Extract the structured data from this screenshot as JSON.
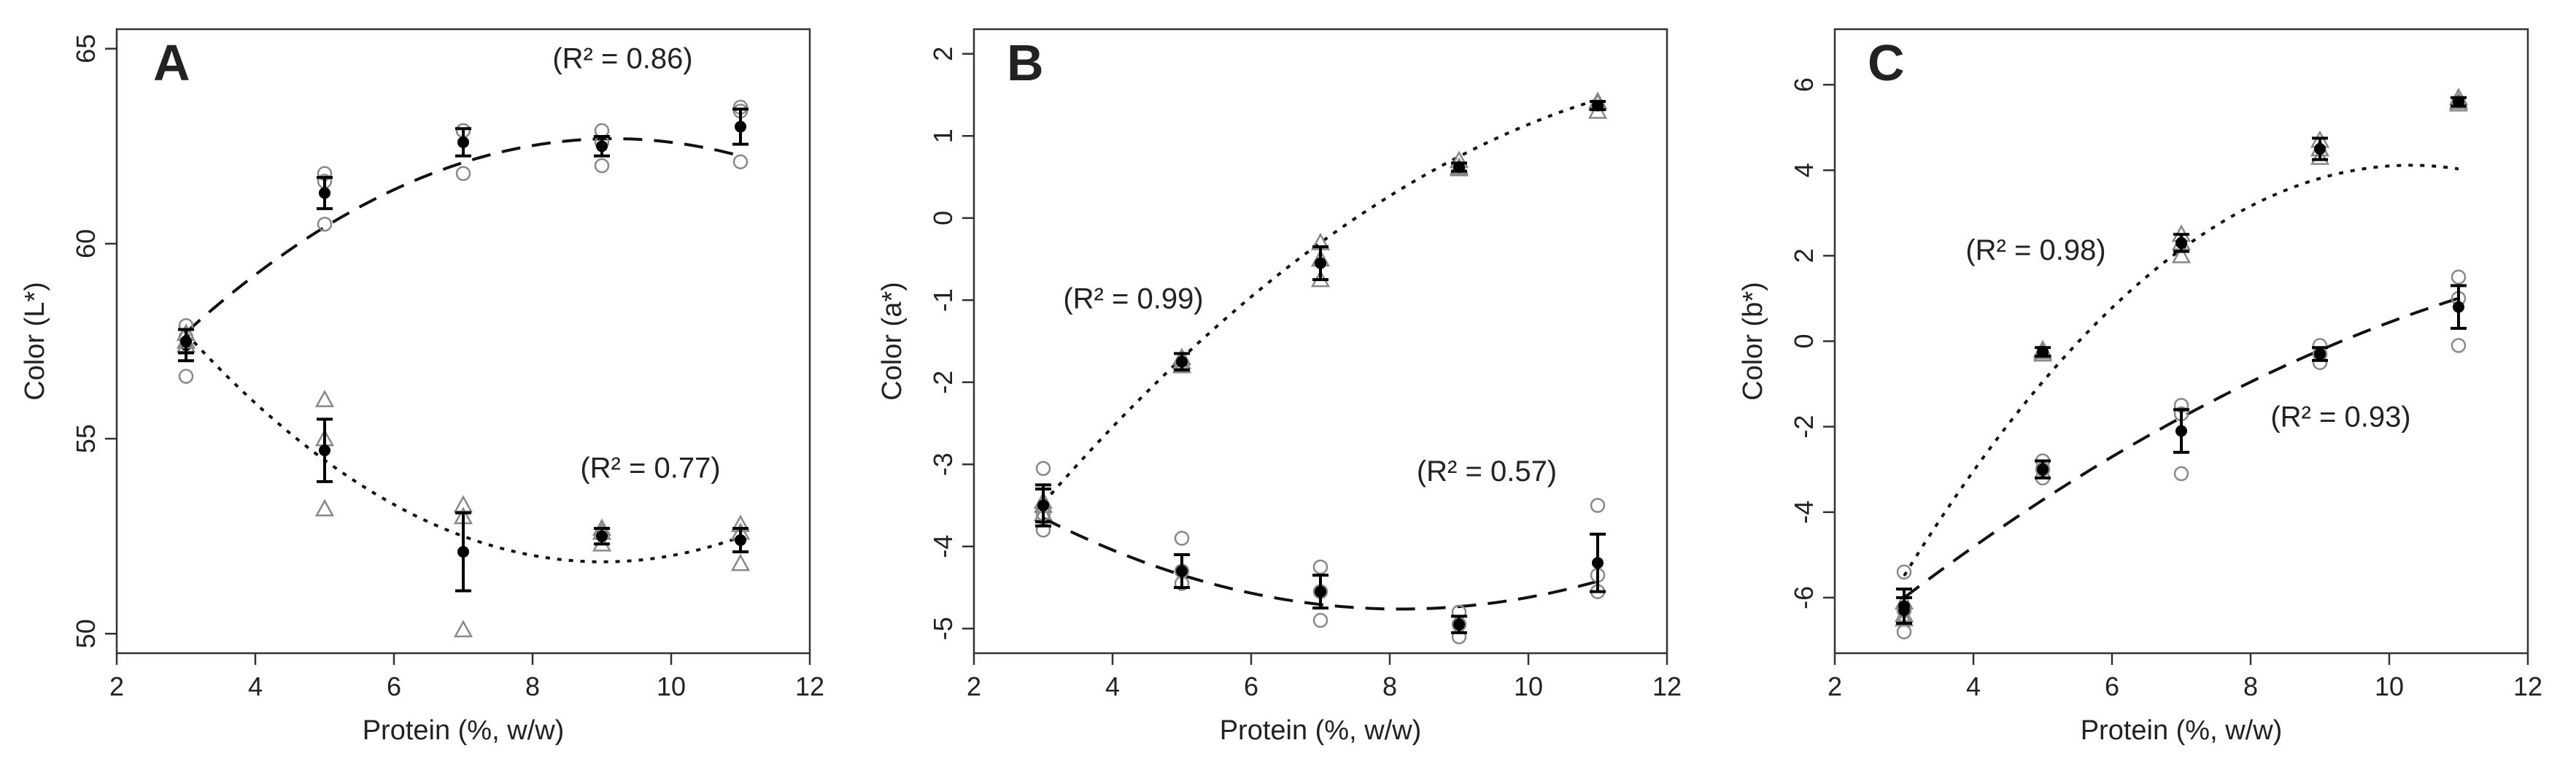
{
  "chart_data": [
    {
      "type": "scatter",
      "panel": "A",
      "xlabel": "Protein (%, w/w)",
      "ylabel": "Color (L*)",
      "xlim": [
        2,
        12
      ],
      "ylim": [
        49.5,
        65.5
      ],
      "xticks": [
        2,
        4,
        6,
        8,
        10,
        12
      ],
      "yticks": [
        50,
        55,
        60,
        65
      ],
      "grid": false,
      "series": [
        {
          "name": "circle series",
          "marker": "circle",
          "fit": "dashed",
          "r2": "0.86",
          "r2_label": "(R² = 0.86)",
          "x": [
            3,
            5,
            7,
            9,
            11
          ],
          "mean": [
            57.4,
            61.3,
            62.6,
            62.5,
            63.0
          ],
          "err": [
            0.4,
            0.4,
            0.35,
            0.25,
            0.45
          ],
          "reps": [
            [
              56.6,
              57.9,
              57.6
            ],
            [
              60.5,
              61.6,
              61.8
            ],
            [
              61.8,
              62.9,
              62.9
            ],
            [
              62.0,
              62.9,
              62.6
            ],
            [
              62.1,
              63.5,
              63.4
            ]
          ],
          "fit_coef": [
            51.7,
            2.4,
            -0.131
          ]
        },
        {
          "name": "triangle series",
          "marker": "triangle",
          "fit": "dotted",
          "r2": "0.77",
          "r2_label": "(R² = 0.77)",
          "x": [
            3,
            5,
            7,
            9,
            11
          ],
          "mean": [
            57.5,
            54.7,
            52.1,
            52.5,
            52.4
          ],
          "err": [
            0.3,
            0.8,
            1.0,
            0.2,
            0.3
          ],
          "reps": [
            [
              57.5,
              57.7,
              57.4
            ],
            [
              53.2,
              55.0,
              56.0
            ],
            [
              50.1,
              53.0,
              53.3
            ],
            [
              52.3,
              52.6,
              52.7
            ],
            [
              51.8,
              52.6,
              52.8
            ]
          ],
          "fit_coef": [
            65.0,
            -2.92,
            0.162
          ]
        }
      ]
    },
    {
      "type": "scatter",
      "panel": "B",
      "xlabel": "Protein (%, w/w)",
      "ylabel": "Color (a*)",
      "xlim": [
        2,
        12
      ],
      "ylim": [
        -5.3,
        2.3
      ],
      "xticks": [
        2,
        4,
        6,
        8,
        10,
        12
      ],
      "yticks": [
        -5,
        -4,
        -3,
        -2,
        -1,
        0,
        1,
        2
      ],
      "grid": false,
      "series": [
        {
          "name": "triangle series",
          "marker": "triangle",
          "fit": "dotted",
          "r2": "0.99",
          "r2_label": "(R² = 0.99)",
          "x": [
            3,
            5,
            7,
            9,
            11
          ],
          "mean": [
            -3.5,
            -1.75,
            -0.55,
            0.62,
            1.37
          ],
          "err": [
            0.2,
            0.1,
            0.2,
            0.05,
            0.05
          ],
          "reps": [
            [
              -3.5,
              -3.45,
              -3.6
            ],
            [
              -1.7,
              -1.8,
              -1.75
            ],
            [
              -0.3,
              -0.5,
              -0.75
            ],
            [
              0.6,
              0.7,
              0.62
            ],
            [
              1.3,
              1.42,
              1.4
            ]
          ],
          "fit_coef": [
            -6.79,
            1.24,
            -0.0447
          ]
        },
        {
          "name": "circle series",
          "marker": "circle",
          "fit": "dashed",
          "r2": "0.57",
          "r2_label": "(R² = 0.57)",
          "x": [
            3,
            5,
            7,
            9,
            11
          ],
          "mean": [
            -3.5,
            -4.3,
            -4.55,
            -4.95,
            -4.2
          ],
          "err": [
            0.25,
            0.2,
            0.2,
            0.1,
            0.35
          ],
          "reps": [
            [
              -3.05,
              -3.8,
              -3.6
            ],
            [
              -3.9,
              -4.45,
              -4.3
            ],
            [
              -4.25,
              -4.9,
              -4.55
            ],
            [
              -4.8,
              -5.1,
              -4.95
            ],
            [
              -3.5,
              -4.55,
              -4.35
            ]
          ],
          "fit_coef": [
            -1.99,
            -0.68,
            0.0417
          ]
        }
      ]
    },
    {
      "type": "scatter",
      "panel": "C",
      "xlabel": "Protein (%, w/w)",
      "ylabel": "Color (b*)",
      "xlim": [
        2,
        12
      ],
      "ylim": [
        -7.3,
        7.3
      ],
      "xticks": [
        2,
        4,
        6,
        8,
        10,
        12
      ],
      "yticks": [
        -6,
        -4,
        -2,
        0,
        2,
        4,
        6
      ],
      "grid": false,
      "series": [
        {
          "name": "triangle series",
          "marker": "triangle",
          "fit": "dotted",
          "r2": "0.98",
          "r2_label": "(R² = 0.98)",
          "x": [
            3,
            5,
            7,
            9,
            11
          ],
          "mean": [
            -6.3,
            -0.25,
            2.3,
            4.5,
            5.6
          ],
          "err": [
            0.3,
            0.1,
            0.2,
            0.25,
            0.1
          ],
          "reps": [
            [
              -6.1,
              -6.5,
              -6.4
            ],
            [
              -0.2,
              -0.3,
              -0.25
            ],
            [
              2.0,
              2.5,
              2.3
            ],
            [
              4.3,
              4.7,
              4.5
            ],
            [
              5.55,
              5.7,
              5.6
            ]
          ],
          "fit_coef": [
            -15.0,
            3.71,
            -0.18
          ]
        },
        {
          "name": "circle series",
          "marker": "circle",
          "fit": "dashed",
          "r2": "0.93",
          "r2_label": "(R² = 0.93)",
          "x": [
            3,
            5,
            7,
            9,
            11
          ],
          "mean": [
            -6.2,
            -3.0,
            -2.1,
            -0.3,
            0.8
          ],
          "err": [
            0.4,
            0.2,
            0.5,
            0.15,
            0.5
          ],
          "reps": [
            [
              -5.4,
              -6.8,
              -6.3
            ],
            [
              -2.8,
              -3.2,
              -3.0
            ],
            [
              -1.5,
              -3.1,
              -1.7
            ],
            [
              -0.1,
              -0.5,
              -0.3
            ],
            [
              1.5,
              -0.1,
              1.0
            ]
          ],
          "fit_coef": [
            -10.1,
            1.5,
            -0.0446
          ]
        }
      ]
    }
  ]
}
